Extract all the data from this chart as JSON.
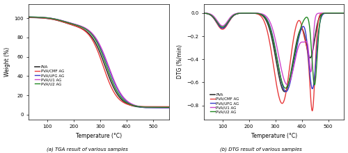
{
  "tga_title": "(a) TGA result of various samples",
  "dtg_title": "(b) DTG result of various samples",
  "tga_xlabel": "Temperature (°C)",
  "dtg_xlabel": "Temperature (°C)",
  "tga_ylabel": "Weight (%)",
  "dtg_ylabel": "DTG (%/min)",
  "labels": [
    "PVA",
    "PVA/CMF AG",
    "PVA/UFG AG",
    "PVA/U1 AG",
    "PVA/U2 AG"
  ],
  "colors": [
    "#333333",
    "#e8393a",
    "#3737c8",
    "#cc44cc",
    "#228822"
  ],
  "linewidths": [
    1.2,
    1.0,
    1.0,
    1.0,
    1.0
  ],
  "tga_xlim": [
    30,
    560
  ],
  "tga_ylim": [
    -5,
    115
  ],
  "dtg_xlim": [
    30,
    560
  ],
  "dtg_ylim": [
    -0.92,
    0.08
  ],
  "tga_xticks": [
    100,
    200,
    300,
    400,
    500
  ],
  "dtg_xticks": [
    100,
    200,
    300,
    400,
    500
  ],
  "tga_yticks": [
    0,
    20,
    40,
    60,
    80,
    100
  ],
  "dtg_yticks": [
    -0.8,
    -0.6,
    -0.4,
    -0.2,
    0.0
  ]
}
